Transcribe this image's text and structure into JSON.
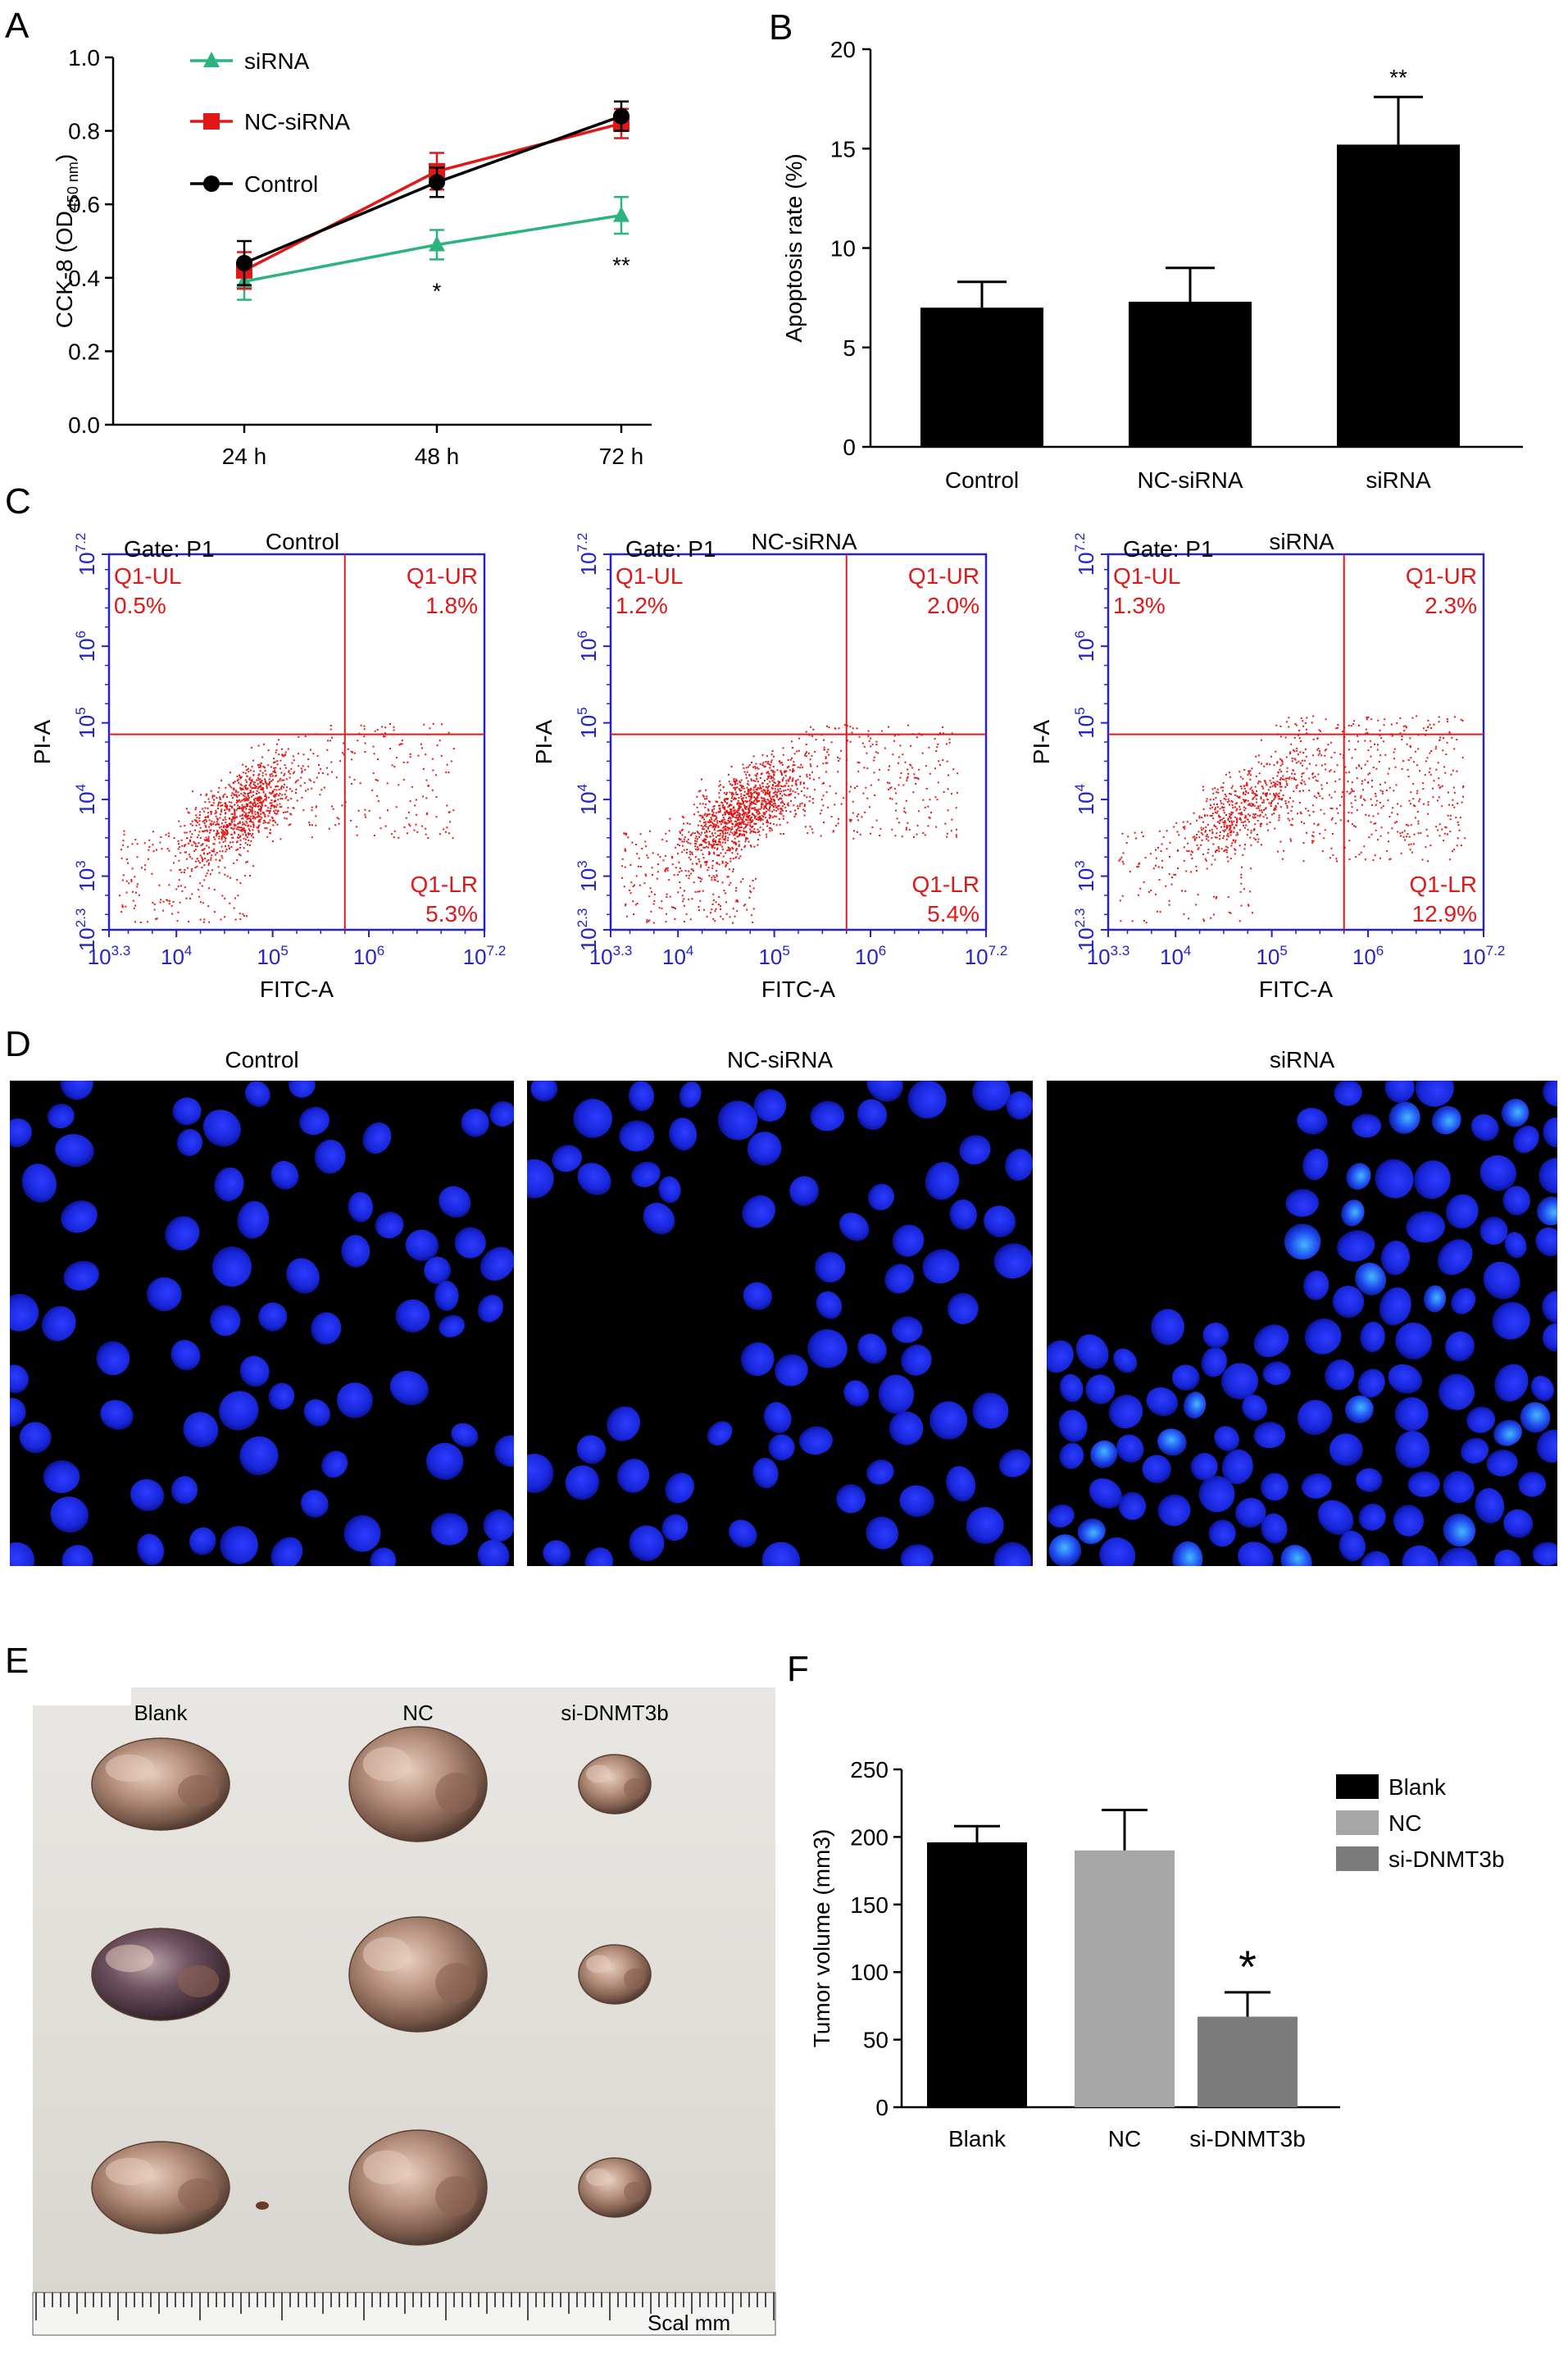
{
  "panels": {
    "a": "A",
    "b": "B",
    "c": "C",
    "d": "D",
    "e": "E",
    "f": "F"
  },
  "chart_data": [
    {
      "id": "A",
      "type": "line",
      "categories": [
        "24 h",
        "48 h",
        "72 h"
      ],
      "ylabel_pre": "CCK-8 (OD",
      "ylabel_sub": "450 nm",
      "ylabel_post": ")",
      "ylim": [
        0.0,
        1.0
      ],
      "yticks": [
        "0.0",
        "0.2",
        "0.4",
        "0.6",
        "0.8",
        "1.0"
      ],
      "legend_position": "top-left",
      "series": [
        {
          "name": "siRNA",
          "color": "#2db37d",
          "marker": "triangle",
          "values": [
            0.39,
            0.49,
            0.57
          ],
          "errors": [
            0.05,
            0.04,
            0.05
          ]
        },
        {
          "name": "NC-siRNA",
          "color": "#e01818",
          "marker": "square",
          "values": [
            0.42,
            0.69,
            0.82
          ],
          "errors": [
            0.05,
            0.05,
            0.04
          ]
        },
        {
          "name": "Control",
          "color": "#000000",
          "marker": "circle",
          "values": [
            0.44,
            0.66,
            0.84
          ],
          "errors": [
            0.06,
            0.04,
            0.04
          ]
        }
      ],
      "annotations": [
        {
          "category": "48 h",
          "text": "*"
        },
        {
          "category": "72 h",
          "text": "**"
        }
      ]
    },
    {
      "id": "B",
      "type": "bar",
      "categories": [
        "Control",
        "NC-siRNA",
        "siRNA"
      ],
      "values": [
        7.0,
        7.3,
        15.2
      ],
      "errors": [
        1.3,
        1.7,
        2.4
      ],
      "ylabel": "Apoptosis rate (%)",
      "ylim": [
        0,
        20
      ],
      "yticks": [
        "0",
        "5",
        "10",
        "15",
        "20"
      ],
      "bar_color": "#000000",
      "annotations": [
        {
          "category": "siRNA",
          "text": "**"
        }
      ]
    },
    {
      "id": "F",
      "type": "bar",
      "categories": [
        "Blank",
        "NC",
        "si-DNMT3b"
      ],
      "values": [
        196,
        190,
        67
      ],
      "errors": [
        12,
        30,
        18
      ],
      "colors": [
        "#000000",
        "#a6a6a6",
        "#7b7b7b"
      ],
      "ylabel": "Tumor volume (mm3)",
      "ylim": [
        0,
        250
      ],
      "yticks": [
        "0",
        "50",
        "100",
        "150",
        "200",
        "250"
      ],
      "legend_position": "right",
      "legend": [
        "Blank",
        "NC",
        "si-DNMT3b"
      ],
      "annotations": [
        {
          "category": "si-DNMT3b",
          "text": "*"
        }
      ]
    }
  ],
  "flow": {
    "gate": "Gate: P1",
    "xlabel": "FITC-A",
    "ylabel": "PI-A",
    "xtick_base": "10",
    "xtick_exps": [
      "3.3",
      "4",
      "5",
      "6",
      "7.2"
    ],
    "ytick_exps": [
      "2.3",
      "3",
      "4",
      "5",
      "6",
      "7.2"
    ],
    "quadrant_labels": {
      "ul": "Q1-UL",
      "ur": "Q1-UR",
      "lr": "Q1-LR"
    },
    "plots": [
      {
        "title": "Control",
        "ul": "0.5%",
        "ur": "1.8%",
        "lr": "5.3%"
      },
      {
        "title": "NC-siRNA",
        "ul": "1.2%",
        "ur": "2.0%",
        "lr": "5.4%"
      },
      {
        "title": "siRNA",
        "ul": "1.3%",
        "ur": "2.3%",
        "lr": "12.9%"
      }
    ]
  },
  "microscopy": {
    "titles": [
      "Control",
      "NC-siRNA",
      "siRNA"
    ]
  },
  "tumors": {
    "labels": [
      "Blank",
      "NC",
      "si-DNMT3b"
    ],
    "scale_text": "Scal mm"
  }
}
